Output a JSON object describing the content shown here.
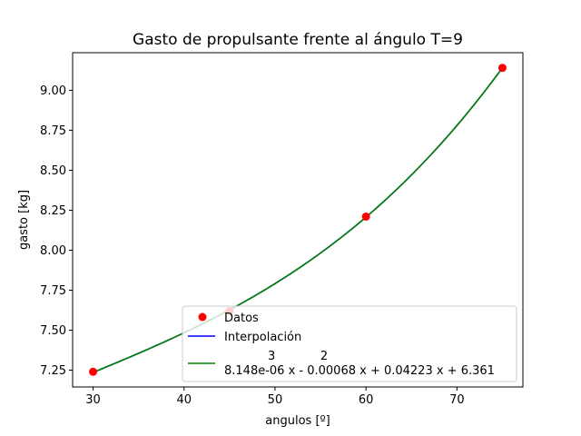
{
  "chart_data": {
    "type": "line",
    "title": "Gasto de propulsante frente al ángulo T=9",
    "xlabel": "angulos [º]",
    "ylabel": "gasto [kg]",
    "xlim": [
      27.75,
      77.25
    ],
    "ylim": [
      7.145,
      9.235
    ],
    "xticks": [
      30,
      40,
      50,
      60,
      70
    ],
    "yticks": [
      7.25,
      7.5,
      7.75,
      8.0,
      8.25,
      8.5,
      8.75,
      9.0
    ],
    "xtick_labels": [
      "30",
      "40",
      "50",
      "60",
      "70"
    ],
    "ytick_labels": [
      "7.25",
      "7.50",
      "7.75",
      "8.00",
      "8.25",
      "8.50",
      "8.75",
      "9.00"
    ],
    "grid": false,
    "legend_position": "lower-right",
    "points": {
      "name": "Datos",
      "color": "#ff0000",
      "x": [
        30,
        45,
        60,
        75
      ],
      "y": [
        7.24,
        7.62,
        8.21,
        9.14
      ]
    },
    "interpolation": {
      "name": "Interpolación",
      "color": "#0000ff"
    },
    "polyfit": {
      "color": "#008000",
      "coefficients": [
        8.148e-06,
        -0.00068,
        0.04223,
        6.361
      ],
      "legend_exponents": "3            2",
      "legend_expression": "8.148e-06 x - 0.00068 x + 0.04223 x + 6.361"
    }
  }
}
